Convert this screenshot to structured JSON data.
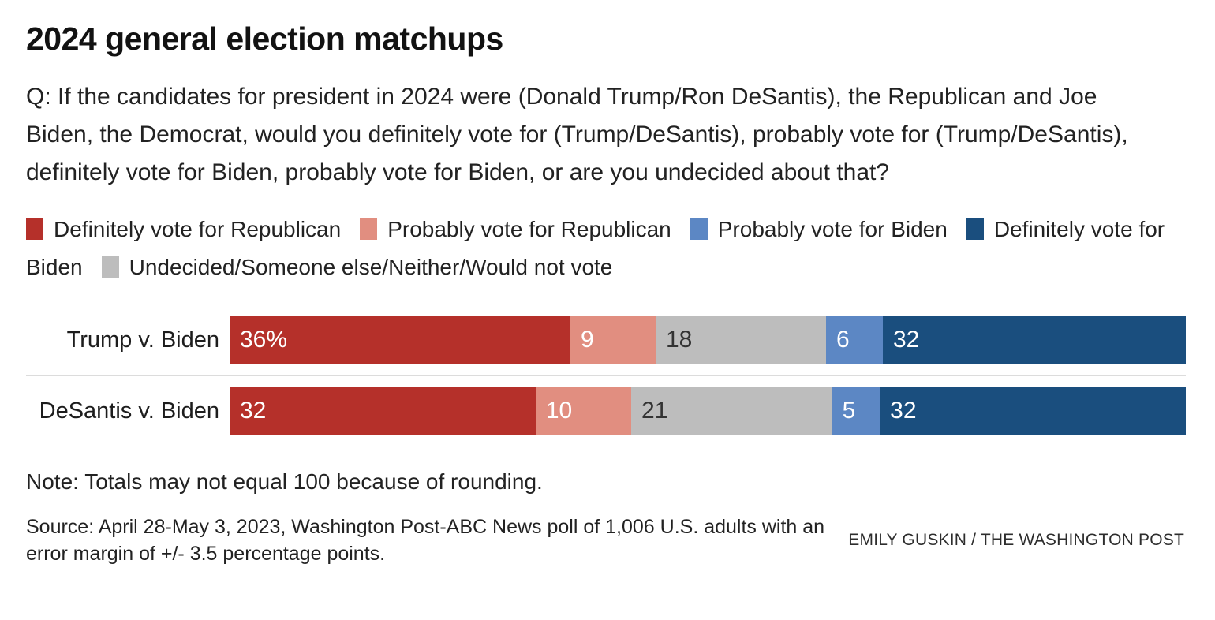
{
  "title": "2024 general election matchups",
  "question": "Q: If the candidates for president in 2024 were (Donald Trump/Ron DeSantis), the Republican and Joe Biden, the Democrat, would you definitely vote for (Trump/DeSantis), probably vote for (Trump/DeSantis), definitely vote for Biden, probably vote for Biden, or are you undecided about that?",
  "colors": {
    "definitely_republican": "#b5302a",
    "probably_republican": "#e18e80",
    "undecided": "#bdbdbd",
    "probably_biden": "#5c87c4",
    "definitely_biden": "#1a4e7e",
    "divider": "#dcdcdc"
  },
  "legend": [
    {
      "label": "Definitely vote for Republican",
      "color": "#b5302a"
    },
    {
      "label": "Probably vote for Republican",
      "color": "#e18e80"
    },
    {
      "label": "Probably vote for Biden",
      "color": "#5c87c4"
    },
    {
      "label": "Definitely vote for Biden",
      "color": "#1a4e7e"
    },
    {
      "label": "Undecided/Someone else/Neither/Would not vote",
      "color": "#bdbdbd"
    }
  ],
  "chart_data": {
    "type": "bar",
    "orientation": "horizontal-stacked",
    "categories": [
      "Trump v. Biden",
      "DeSantis v. Biden"
    ],
    "series": [
      {
        "name": "Definitely vote for Republican",
        "color": "#b5302a",
        "label_color": "#ffffff",
        "values": [
          36,
          32
        ]
      },
      {
        "name": "Probably vote for Republican",
        "color": "#e18e80",
        "label_color": "#ffffff",
        "values": [
          9,
          10
        ]
      },
      {
        "name": "Undecided/Someone else/Neither/Would not vote",
        "color": "#bdbdbd",
        "label_color": "#333333",
        "values": [
          18,
          21
        ]
      },
      {
        "name": "Probably vote for Biden",
        "color": "#5c87c4",
        "label_color": "#ffffff",
        "values": [
          6,
          5
        ]
      },
      {
        "name": "Definitely vote for Biden",
        "color": "#1a4e7e",
        "label_color": "#ffffff",
        "values": [
          32,
          32
        ]
      }
    ],
    "bar_labels": [
      [
        "36%",
        "9",
        "18",
        "6",
        "32"
      ],
      [
        "32",
        "10",
        "21",
        "5",
        "32"
      ]
    ],
    "legend_position": "top",
    "grid": false,
    "xlim": [
      0,
      101
    ]
  },
  "note": "Note: Totals may not equal 100 because of rounding.",
  "source": "Source: April 28-May 3, 2023, Washington Post-ABC News poll of 1,006 U.S. adults with an error margin of +/- 3.5 percentage points.",
  "credit": "EMILY GUSKIN / THE WASHINGTON POST"
}
